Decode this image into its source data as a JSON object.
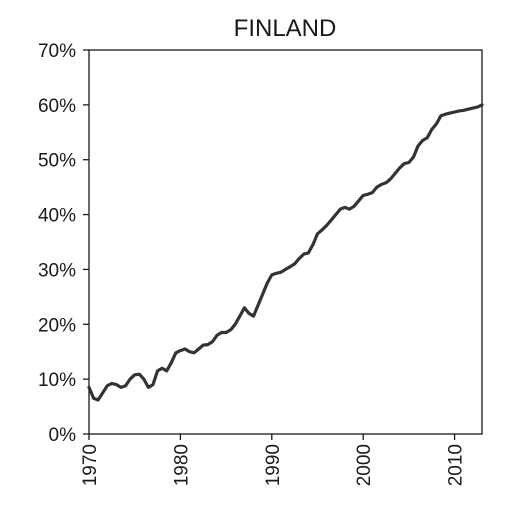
{
  "chart_data": {
    "type": "line",
    "title": "FINLAND",
    "xlabel": "",
    "ylabel": "",
    "xlim": [
      1970,
      2013
    ],
    "ylim": [
      0,
      70
    ],
    "x_ticks": [
      1970,
      1980,
      1990,
      2000,
      2010
    ],
    "x_tick_labels": [
      "1970",
      "1980",
      "1990",
      "2000",
      "2010"
    ],
    "y_ticks": [
      0,
      10,
      20,
      30,
      40,
      50,
      60,
      70
    ],
    "y_tick_labels": [
      "0%",
      "10%",
      "20%",
      "30%",
      "40%",
      "50%",
      "60%",
      "70%"
    ],
    "grid": false,
    "colors": {
      "line": "#333333",
      "axis": "#1a1a1a"
    },
    "series": [
      {
        "x": [
          1970,
          1970.5,
          1971,
          1971.5,
          1972,
          1972.5,
          1973,
          1973.5,
          1974,
          1974.5,
          1975,
          1975.5,
          1976,
          1976.5,
          1977,
          1977.5,
          1978,
          1978.5,
          1979,
          1979.5,
          1980,
          1980.5,
          1981,
          1981.5,
          1982,
          1982.5,
          1983,
          1983.5,
          1984,
          1984.5,
          1985,
          1985.5,
          1986,
          1986.5,
          1987,
          1987.5,
          1988,
          1988.5,
          1989,
          1989.5,
          1990,
          1990.5,
          1991,
          1991.5,
          1992,
          1992.5,
          1993,
          1993.5,
          1994,
          1994.5,
          1995,
          1995.5,
          1996,
          1996.5,
          1997,
          1997.5,
          1998,
          1998.5,
          1999,
          1999.5,
          2000,
          2000.5,
          2001,
          2001.5,
          2002,
          2002.5,
          2003,
          2003.5,
          2004,
          2004.5,
          2005,
          2005.5,
          2006,
          2006.5,
          2007,
          2007.5,
          2008,
          2008.5,
          2009,
          2009.5,
          2010,
          2010.5,
          2011,
          2011.5,
          2012,
          2012.5,
          2013
        ],
        "values": [
          8.5,
          6.5,
          6.2,
          7.5,
          8.8,
          9.2,
          9.0,
          8.5,
          8.8,
          10.0,
          10.8,
          10.9,
          10.0,
          8.5,
          9.0,
          11.5,
          12.0,
          11.5,
          13.0,
          14.8,
          15.2,
          15.5,
          15.0,
          14.8,
          15.5,
          16.2,
          16.3,
          16.8,
          18.0,
          18.5,
          18.5,
          19.0,
          20.0,
          21.5,
          23.0,
          22.0,
          21.5,
          23.5,
          25.5,
          27.5,
          29.0,
          29.3,
          29.5,
          30.0,
          30.5,
          31.0,
          32.0,
          32.8,
          33.0,
          34.5,
          36.5,
          37.2,
          38.0,
          39.0,
          40.0,
          41.0,
          41.3,
          41.0,
          41.5,
          42.5,
          43.5,
          43.7,
          44.0,
          45.0,
          45.5,
          45.8,
          46.5,
          47.5,
          48.5,
          49.3,
          49.5,
          50.5,
          52.5,
          53.5,
          54.0,
          55.5,
          56.5,
          58.0,
          58.3,
          58.5,
          58.7,
          58.9,
          59.0,
          59.2,
          59.4,
          59.6,
          60.0
        ]
      }
    ]
  }
}
